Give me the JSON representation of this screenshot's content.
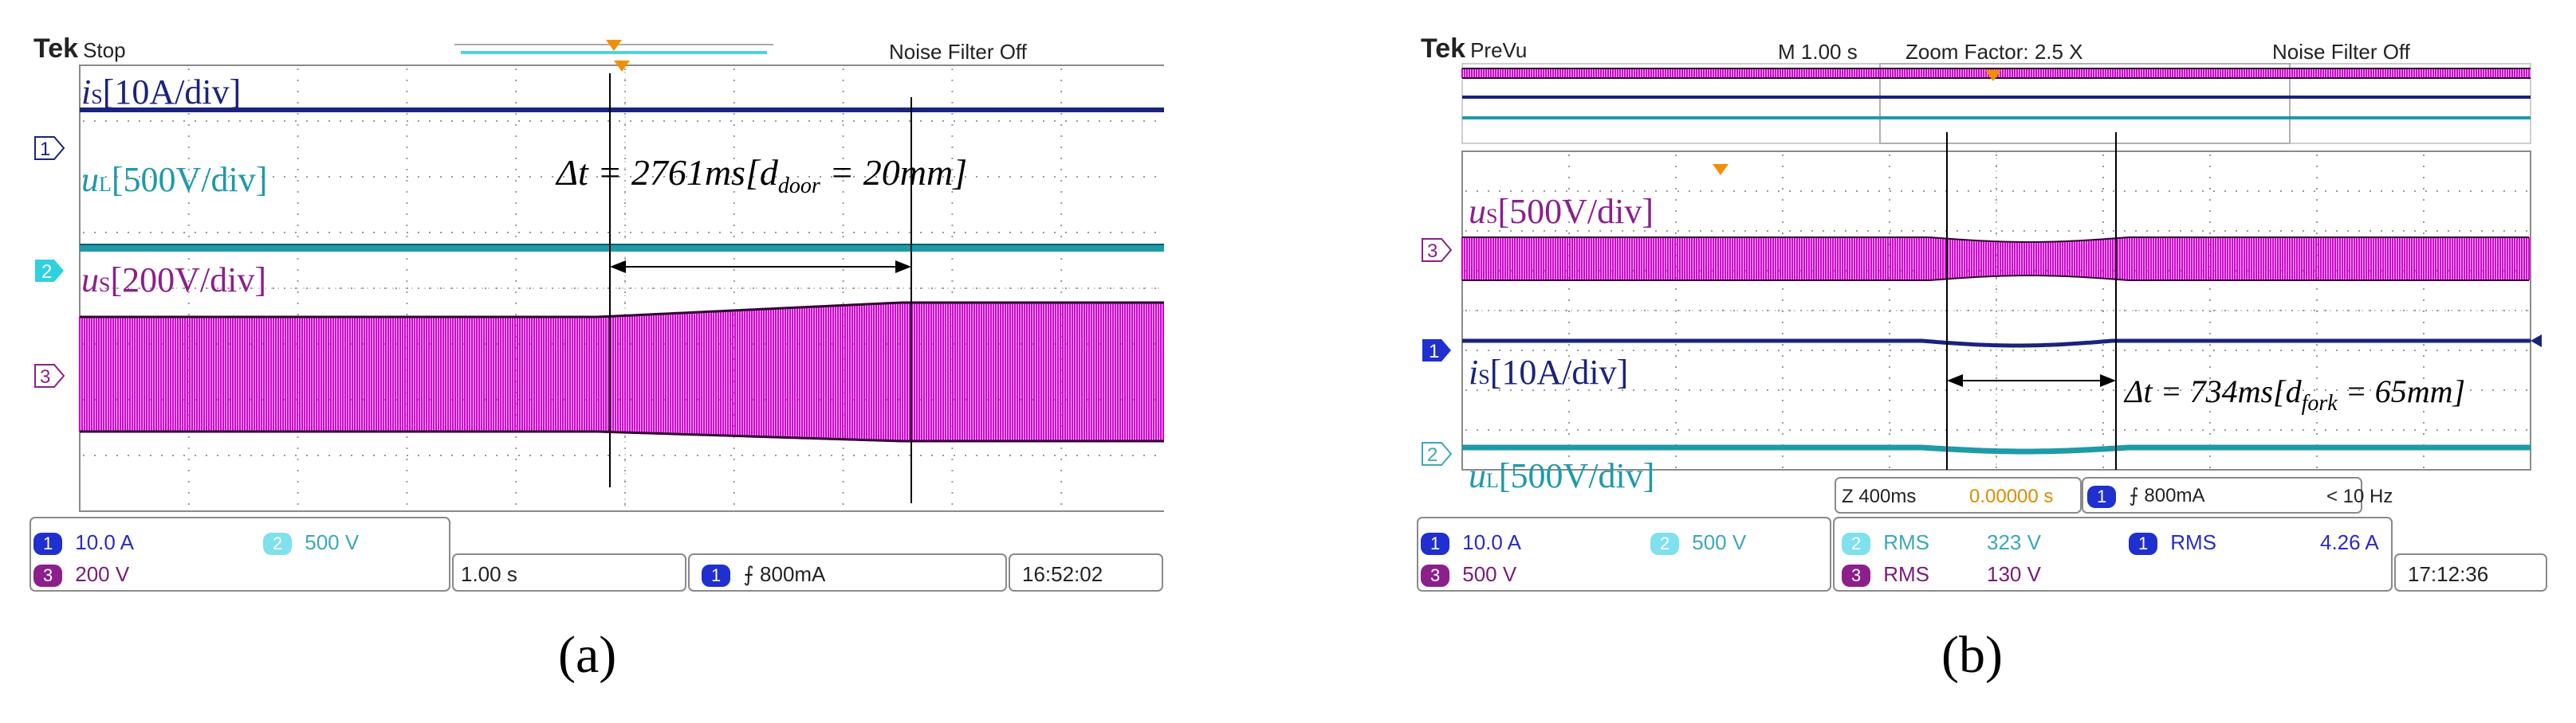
{
  "chart_data": [
    {
      "type": "line",
      "panel_label": "(a)",
      "brand": "Tek",
      "status": "Stop",
      "noise_filter": "Noise Filter Off",
      "series": [
        {
          "label_main": "i",
          "label_sub": "S",
          "label_rest": "[10A/div]",
          "color": "#1a237e",
          "channel": "1"
        },
        {
          "label_main": "u",
          "label_sub": "L",
          "label_rest": "[500V/div]",
          "color": "#1e9aa8",
          "channel": "2"
        },
        {
          "label_main": "u",
          "label_sub": "S",
          "label_rest": "[200V/div]",
          "color": "#cc00cc",
          "channel": "3"
        }
      ],
      "annotation": {
        "lhs": "Δt = 2761ms[d",
        "sub": "door",
        "rhs": " = 20mm]"
      },
      "footer": {
        "ch1": "1",
        "ch1_val": "10.0 A",
        "ch2": "2",
        "ch2_val": "500 V",
        "ch3": "3",
        "ch3_val": "200 V",
        "timebase": "1.00 s",
        "trig_ch": "1",
        "trigger": "⨍ 800mA",
        "time": "16:52:02"
      }
    },
    {
      "type": "line",
      "panel_label": "(b)",
      "brand": "Tek",
      "status": "PreVu",
      "timebase_top": "M 1.00 s",
      "zoom": "Zoom Factor: 2.5 X",
      "noise_filter": "Noise Filter Off",
      "series": [
        {
          "label_main": "u",
          "label_sub": "S",
          "label_rest": "[500V/div]",
          "color": "#cc00cc",
          "channel": "3"
        },
        {
          "label_main": "i",
          "label_sub": "S",
          "label_rest": "[10A/div]",
          "color": "#1a237e",
          "channel": "1"
        },
        {
          "label_main": "u",
          "label_sub": "L",
          "label_rest": "[500V/div]",
          "color": "#1e9aa8",
          "channel": "2"
        }
      ],
      "annotation": {
        "lhs": "Δt = 734ms[d",
        "sub": "fork",
        "rhs": " = 65mm]"
      },
      "zoom_box": {
        "z": "Z 400ms",
        "offset": "0.00000 s",
        "trig_ch": "1",
        "trigger": "⨍ 800mA",
        "freq": "< 10 Hz"
      },
      "footer": {
        "ch1": "1",
        "ch1_val": "10.0 A",
        "ch2": "2",
        "ch2_val": "500 V",
        "ch3": "3",
        "ch3_val": "500 V",
        "m2": "2",
        "m2_label": "RMS",
        "m2_val": "323 V",
        "m3": "3",
        "m3_label": "RMS",
        "m3_val": "130 V",
        "m1": "1",
        "m1_label": "RMS",
        "m1_val": "4.26 A",
        "time": "17:12:36"
      }
    }
  ]
}
